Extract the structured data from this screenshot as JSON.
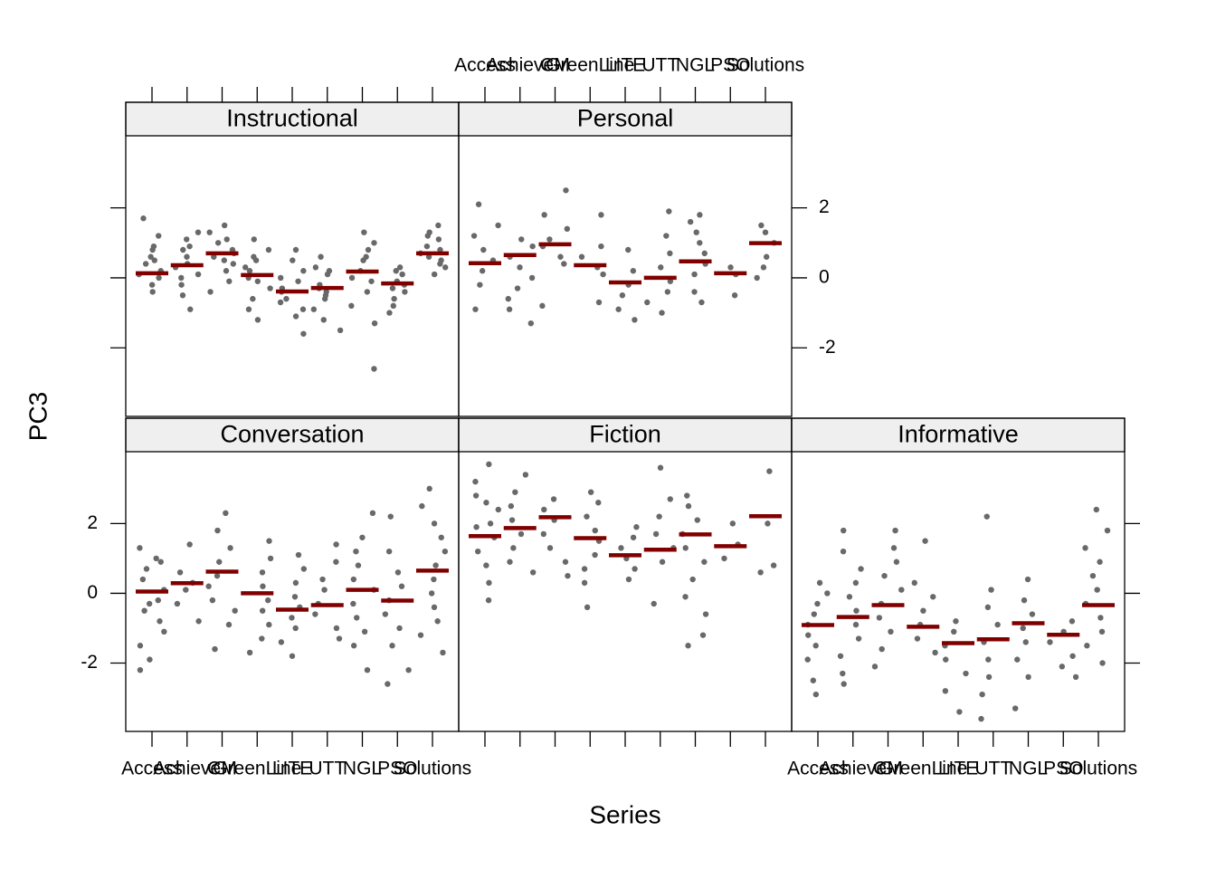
{
  "xlabel": "Series",
  "ylabel": "PC3",
  "categories": [
    "Access",
    "Achieve",
    "CM",
    "GreenLine",
    "LITE",
    "UTT",
    "NGL",
    "PSO",
    "Solutions"
  ],
  "ylim": [
    -3.96,
    4.06
  ],
  "yticks": [
    -2,
    0,
    2
  ],
  "point_color": "#696969",
  "mean_color": "#800000",
  "strip_color": "#efefef",
  "chart_data": [
    {
      "type": "strip",
      "title": "Instructional",
      "means": [
        0.13,
        0.36,
        0.7,
        0.08,
        -0.39,
        -0.29,
        0.18,
        -0.16,
        0.7
      ],
      "points": [
        [
          1.7,
          1.2,
          0.9,
          0.6,
          0.4,
          0.2,
          0,
          -0.2,
          -0.4,
          0.8,
          0.1,
          0.5
        ],
        [
          1.3,
          1.1,
          0.8,
          0.6,
          0.3,
          0.1,
          -0.2,
          -0.5,
          -0.9,
          0.9,
          0.4,
          0.0
        ],
        [
          1.5,
          1.3,
          1.0,
          0.8,
          0.6,
          0.4,
          0.2,
          -0.1,
          -0.4,
          1.1,
          0.7,
          0.5
        ],
        [
          1.1,
          0.8,
          0.5,
          0.2,
          0,
          -0.3,
          -0.6,
          -0.9,
          -1.2,
          0.3,
          -0.1,
          0.6
        ],
        [
          0.8,
          0.5,
          0.2,
          -0.1,
          -0.4,
          -0.6,
          -0.9,
          -1.1,
          -1.6,
          0,
          -0.3,
          -0.7
        ],
        [
          0.6,
          0.3,
          0.1,
          -0.2,
          -0.4,
          -0.6,
          -0.9,
          -1.2,
          -1.5,
          0.2,
          -0.3,
          -0.5
        ],
        [
          1.3,
          1.0,
          0.8,
          0.5,
          0.2,
          -0.1,
          -0.4,
          -0.8,
          -1.3,
          -2.6,
          0.6,
          0.0
        ],
        [
          0.3,
          0.1,
          -0.1,
          -0.2,
          -0.4,
          -0.6,
          -0.8,
          -1.0,
          0.2,
          -0.3
        ],
        [
          1.5,
          1.3,
          1.1,
          0.9,
          0.7,
          0.5,
          0.3,
          0.1,
          1.2,
          0.8,
          0.6,
          0.4
        ]
      ]
    },
    {
      "type": "strip",
      "title": "Personal",
      "means": [
        0.42,
        0.65,
        0.96,
        0.36,
        -0.13,
        0,
        0.47,
        0.13,
        0.99
      ],
      "points": [
        [
          2.1,
          1.5,
          1.2,
          0.8,
          0.5,
          0.2,
          -0.2,
          -0.9
        ],
        [
          1.1,
          0.9,
          0.6,
          0.3,
          0,
          -0.3,
          -0.6,
          -0.9,
          -1.3
        ],
        [
          2.5,
          1.8,
          1.4,
          1.1,
          0.9,
          0.6,
          0.4,
          -0.8
        ],
        [
          1.8,
          0.9,
          0.6,
          0.3,
          0.1,
          -0.7
        ],
        [
          0.8,
          0.2,
          -0.2,
          -0.5,
          -0.9,
          -1.2
        ],
        [
          1.9,
          1.2,
          0.7,
          0.3,
          -0.1,
          -0.4,
          -0.7,
          -1.0
        ],
        [
          1.8,
          1.6,
          1.3,
          1.0,
          0.7,
          0.4,
          0.1,
          -0.4,
          -0.7
        ],
        [
          0.3,
          0.1,
          -0.5
        ],
        [
          1.5,
          1.3,
          1.0,
          0.6,
          0.3,
          0
        ]
      ]
    },
    {
      "type": "strip",
      "title": "Conversation",
      "means": [
        0.05,
        0.29,
        0.62,
        0,
        -0.47,
        -0.34,
        0.1,
        -0.21,
        0.65
      ],
      "points": [
        [
          1.3,
          1.0,
          0.7,
          0.4,
          0.1,
          -0.2,
          -0.5,
          -0.8,
          -1.1,
          -1.5,
          -1.9,
          -2.2,
          0.9,
          -0.3
        ],
        [
          1.4,
          0.6,
          0.3,
          0.1,
          -0.3,
          -0.8
        ],
        [
          2.3,
          1.8,
          1.3,
          0.9,
          0.5,
          0.2,
          -0.2,
          -0.5,
          -0.9,
          -1.6
        ],
        [
          1.5,
          1.0,
          0.6,
          0.2,
          -0.2,
          -0.5,
          -0.9,
          -1.3,
          -1.7
        ],
        [
          1.1,
          0.7,
          0.3,
          -0.1,
          -0.4,
          -0.7,
          -1.0,
          -1.4,
          -1.8
        ],
        [
          1.4,
          0.9,
          0.4,
          0.1,
          -0.3,
          -0.6,
          -1.0,
          -1.3
        ],
        [
          2.3,
          1.6,
          1.2,
          0.8,
          0.4,
          0.1,
          -0.3,
          -0.7,
          -1.1,
          -1.5,
          -2.2
        ],
        [
          2.2,
          1.2,
          0.6,
          0.2,
          -0.2,
          -0.6,
          -1.0,
          -1.5,
          -2.2,
          -2.6
        ],
        [
          3.0,
          2.5,
          2.0,
          1.6,
          1.2,
          0.8,
          0.4,
          0,
          -0.4,
          -0.8,
          -1.2,
          -1.7
        ]
      ]
    },
    {
      "type": "strip",
      "title": "Fiction",
      "means": [
        1.64,
        1.87,
        2.18,
        1.58,
        1.09,
        1.25,
        1.69,
        1.35,
        2.21
      ],
      "points": [
        [
          3.7,
          3.2,
          2.8,
          2.4,
          2.0,
          1.6,
          1.2,
          0.8,
          0.3,
          -0.2,
          2.6,
          1.9
        ],
        [
          3.4,
          2.9,
          2.5,
          2.1,
          1.7,
          1.3,
          0.9,
          0.6
        ],
        [
          2.7,
          2.4,
          2.1,
          1.7,
          1.3,
          0.9,
          0.5
        ],
        [
          2.9,
          2.6,
          2.2,
          1.8,
          1.5,
          1.1,
          0.7,
          0.3,
          -0.4
        ],
        [
          1.9,
          1.6,
          1.3,
          1.0,
          0.7,
          0.4
        ],
        [
          3.6,
          2.7,
          2.2,
          1.7,
          1.3,
          0.9,
          -0.3
        ],
        [
          2.8,
          2.5,
          2.1,
          1.7,
          1.3,
          0.9,
          0.4,
          -0.1,
          -0.6,
          -1.2,
          -1.5
        ],
        [
          2.0,
          1.4,
          1.0
        ],
        [
          3.5,
          2.0,
          0.8,
          0.6
        ]
      ]
    },
    {
      "type": "strip",
      "title": "Informative",
      "means": [
        -0.91,
        -0.68,
        -0.34,
        -0.96,
        -1.43,
        -1.32,
        -0.86,
        -1.19,
        -0.34
      ],
      "points": [
        [
          0.3,
          0,
          -0.3,
          -0.6,
          -0.9,
          -1.2,
          -1.5,
          -1.9,
          -2.5,
          -2.9
        ],
        [
          1.8,
          1.2,
          0.7,
          0.3,
          -0.1,
          -0.5,
          -0.9,
          -1.3,
          -1.8,
          -2.3,
          -2.6
        ],
        [
          1.8,
          1.3,
          0.9,
          0.5,
          0.1,
          -0.3,
          -0.7,
          -1.1,
          -1.6,
          -2.1
        ],
        [
          1.5,
          0.3,
          -0.1,
          -0.5,
          -0.9,
          -1.3,
          -1.7
        ],
        [
          -0.8,
          -1.1,
          -1.5,
          -1.9,
          -2.3,
          -2.8,
          -3.4
        ],
        [
          2.2,
          0.1,
          -0.4,
          -0.9,
          -1.4,
          -1.9,
          -2.4,
          -2.9,
          -3.6
        ],
        [
          0.4,
          -0.2,
          -0.6,
          -1.0,
          -1.4,
          -1.9,
          -2.4,
          -3.3
        ],
        [
          -0.8,
          -1.1,
          -1.4,
          -1.8,
          -2.1,
          -2.4
        ],
        [
          2.4,
          1.8,
          1.3,
          0.9,
          0.5,
          0.1,
          -0.3,
          -0.7,
          -1.1,
          -1.5,
          -2.0
        ]
      ]
    }
  ]
}
